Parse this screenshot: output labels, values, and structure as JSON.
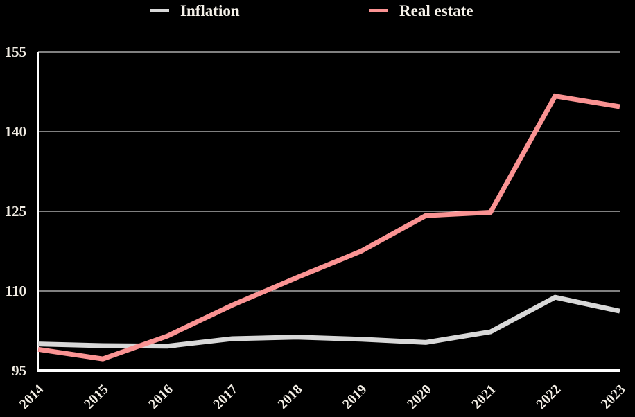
{
  "page": {
    "background_color": "#000000",
    "text_color": "#f2ede4"
  },
  "legend": {
    "items": [
      {
        "label": "Inflation",
        "color": "#d8d8d8"
      },
      {
        "label": "Real estate",
        "color": "#fa9393"
      }
    ]
  },
  "chart_data": {
    "type": "line",
    "x": [
      2014,
      2015,
      2016,
      2017,
      2018,
      2019,
      2020,
      2021,
      2022,
      2023
    ],
    "series": [
      {
        "name": "Inflation",
        "color": "#d8d8d8",
        "values": [
          100.0,
          99.7,
          99.6,
          101.0,
          101.3,
          100.9,
          100.3,
          102.3,
          108.8,
          106.2
        ]
      },
      {
        "name": "Real estate",
        "color": "#fa9393",
        "values": [
          99.0,
          97.2,
          101.5,
          107.3,
          112.5,
          117.5,
          124.2,
          124.8,
          146.7,
          144.7
        ]
      }
    ],
    "ylim": [
      95,
      155
    ],
    "yticks": [
      95,
      110,
      125,
      140,
      155
    ],
    "xtick_labels": [
      "2014",
      "2015",
      "2016",
      "2017",
      "2018",
      "2019",
      "2020",
      "2021",
      "2022",
      "2023"
    ],
    "grid": true,
    "legend_position": "top",
    "axis_color": "#ffffff",
    "gridline_color": "#ffffff",
    "tick_label_color": "#f2ede4",
    "line_width": 7
  }
}
